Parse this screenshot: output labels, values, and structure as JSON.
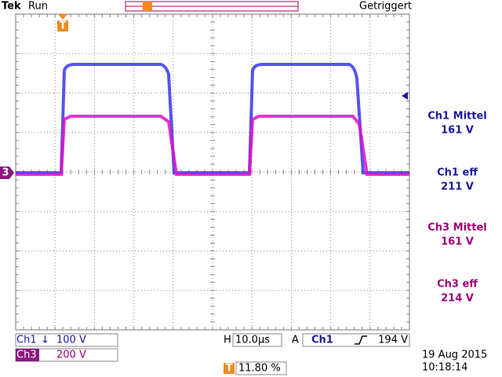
{
  "header": {
    "brand": "Tek",
    "status": "Run",
    "trigger_state": "Getriggert"
  },
  "markers": {
    "channel3": "3",
    "trigger": "T"
  },
  "measurements": [
    {
      "label": "Ch1 Mittel",
      "value": "161 V"
    },
    {
      "label": "Ch1 eff",
      "value": "211 V"
    },
    {
      "label": "Ch3 Mittel",
      "value": "161 V"
    },
    {
      "label": "Ch3 eff",
      "value": "214 V"
    }
  ],
  "channels": [
    {
      "name": "Ch1",
      "coupling": "↓",
      "scale": "100 V"
    },
    {
      "name": "Ch3",
      "scale": "200 V"
    }
  ],
  "timebase": {
    "label": "H",
    "value": "10.0µs"
  },
  "trigger": {
    "label": "A",
    "source": "Ch1",
    "level": "194 V"
  },
  "position": "11.80 %",
  "date": "19 Aug 2015",
  "time": "10:18:14"
}
